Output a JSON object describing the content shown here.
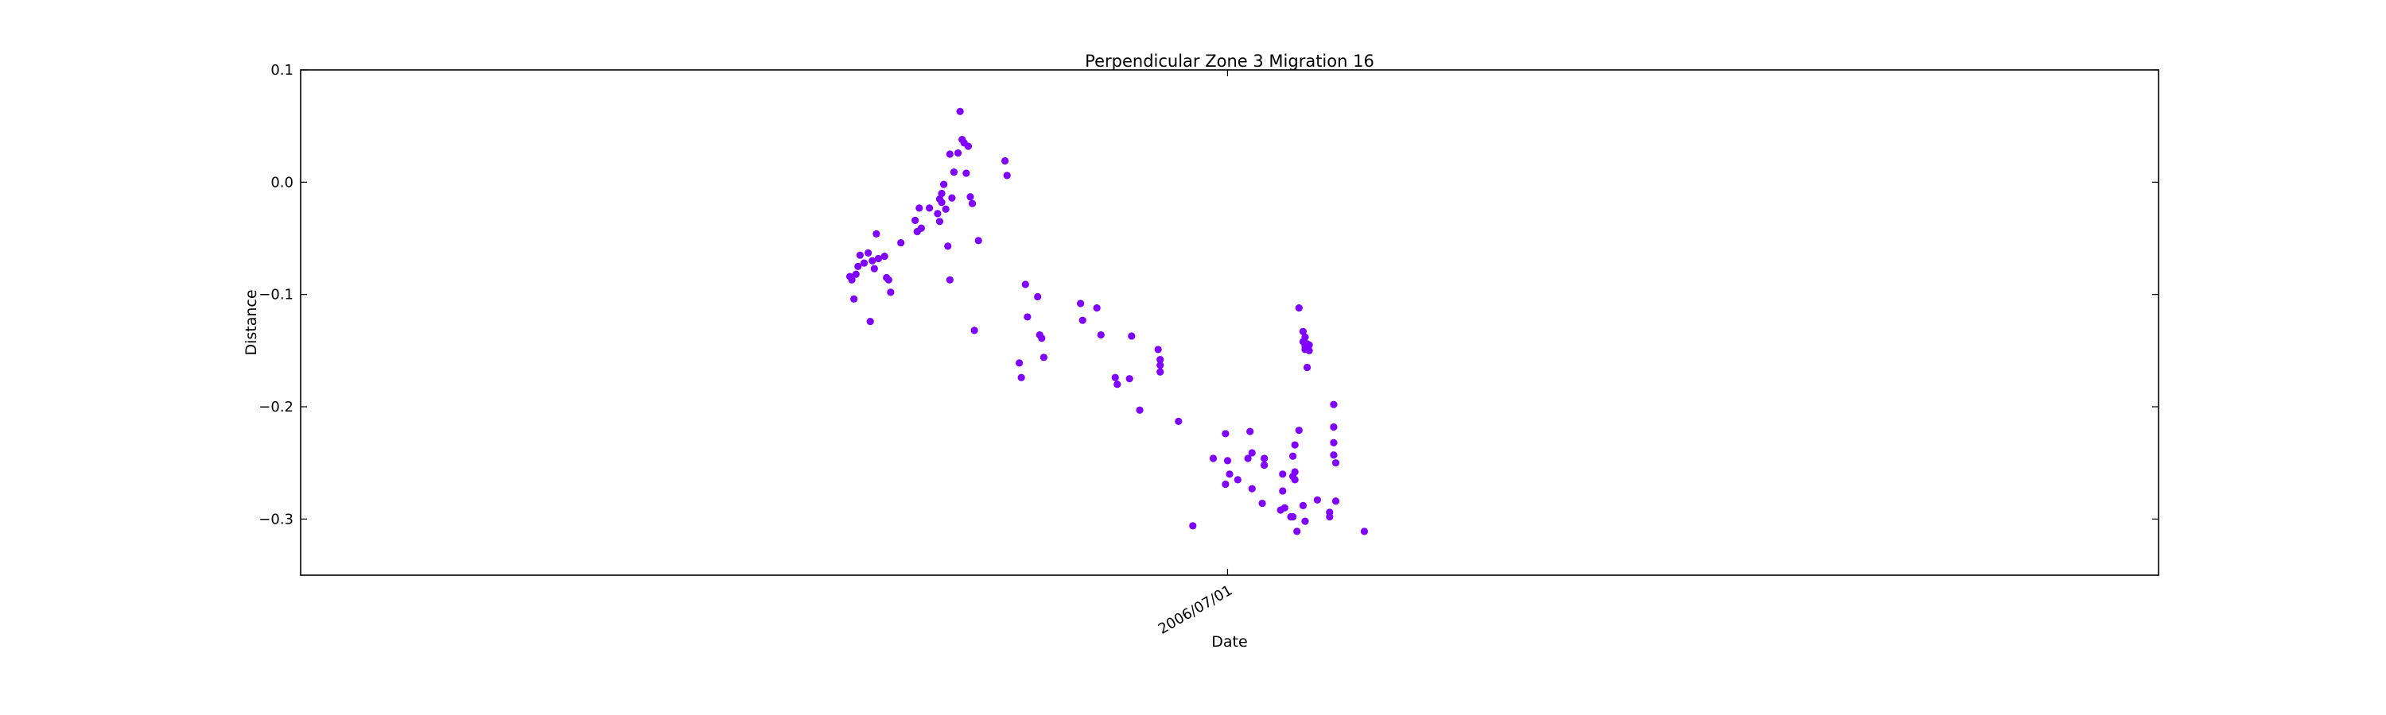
{
  "chart_data": {
    "type": "scatter",
    "title": "Perpendicular Zone 3 Migration 16",
    "xlabel": "Date",
    "ylabel": "Distance",
    "ylim": [
      -0.35,
      0.1
    ],
    "yticks": [
      0.1,
      0.0,
      -0.1,
      -0.2,
      -0.3
    ],
    "ytick_labels": [
      "0.1",
      "0.0",
      "−0.1",
      "−0.2",
      "−0.3"
    ],
    "xlim": [
      "2005-04-03",
      "2007-09-30"
    ],
    "xticks": [
      "2006-07-01"
    ],
    "xtick_labels": [
      "2006/07/01"
    ],
    "grid": false,
    "marker_color": "#7f00ff",
    "points": [
      [
        "2005-12-28",
        -0.084
      ],
      [
        "2005-12-29",
        -0.087
      ],
      [
        "2005-12-30",
        -0.104
      ],
      [
        "2005-12-31",
        -0.082
      ],
      [
        "2006-01-01",
        -0.075
      ],
      [
        "2006-01-02",
        -0.065
      ],
      [
        "2006-01-04",
        -0.072
      ],
      [
        "2006-01-06",
        -0.063
      ],
      [
        "2006-01-07",
        -0.124
      ],
      [
        "2006-01-08",
        -0.07
      ],
      [
        "2006-01-09",
        -0.077
      ],
      [
        "2006-01-10",
        -0.046
      ],
      [
        "2006-01-11",
        -0.068
      ],
      [
        "2006-01-14",
        -0.066
      ],
      [
        "2006-01-15",
        -0.085
      ],
      [
        "2006-01-16",
        -0.087
      ],
      [
        "2006-01-17",
        -0.098
      ],
      [
        "2006-01-22",
        -0.054
      ],
      [
        "2006-01-29",
        -0.034
      ],
      [
        "2006-01-30",
        -0.044
      ],
      [
        "2006-01-31",
        -0.023
      ],
      [
        "2006-02-01",
        -0.041
      ],
      [
        "2006-02-05",
        -0.023
      ],
      [
        "2006-02-09",
        -0.028
      ],
      [
        "2006-02-10",
        -0.035
      ],
      [
        "2006-02-10",
        -0.015
      ],
      [
        "2006-02-11",
        -0.018
      ],
      [
        "2006-02-11",
        -0.01
      ],
      [
        "2006-02-12",
        -0.002
      ],
      [
        "2006-02-13",
        -0.024
      ],
      [
        "2006-02-14",
        -0.057
      ],
      [
        "2006-02-15",
        -0.087
      ],
      [
        "2006-02-15",
        0.025
      ],
      [
        "2006-02-16",
        -0.014
      ],
      [
        "2006-02-17",
        0.009
      ],
      [
        "2006-02-19",
        0.026
      ],
      [
        "2006-02-20",
        0.063
      ],
      [
        "2006-02-21",
        0.038
      ],
      [
        "2006-02-22",
        0.035
      ],
      [
        "2006-02-23",
        0.008
      ],
      [
        "2006-02-24",
        0.032
      ],
      [
        "2006-02-25",
        -0.013
      ],
      [
        "2006-02-26",
        -0.019
      ],
      [
        "2006-02-27",
        -0.132
      ],
      [
        "2006-03-01",
        -0.052
      ],
      [
        "2006-03-14",
        0.019
      ],
      [
        "2006-03-15",
        0.006
      ],
      [
        "2006-03-21",
        -0.161
      ],
      [
        "2006-03-22",
        -0.174
      ],
      [
        "2006-03-24",
        -0.091
      ],
      [
        "2006-03-25",
        -0.12
      ],
      [
        "2006-03-30",
        -0.102
      ],
      [
        "2006-03-31",
        -0.136
      ],
      [
        "2006-04-01",
        -0.139
      ],
      [
        "2006-04-02",
        -0.156
      ],
      [
        "2006-04-20",
        -0.108
      ],
      [
        "2006-04-21",
        -0.123
      ],
      [
        "2006-04-28",
        -0.112
      ],
      [
        "2006-04-30",
        -0.136
      ],
      [
        "2006-05-07",
        -0.174
      ],
      [
        "2006-05-08",
        -0.18
      ],
      [
        "2006-05-14",
        -0.175
      ],
      [
        "2006-05-15",
        -0.137
      ],
      [
        "2006-05-19",
        -0.203
      ],
      [
        "2006-05-28",
        -0.149
      ],
      [
        "2006-05-29",
        -0.158
      ],
      [
        "2006-05-29",
        -0.163
      ],
      [
        "2006-05-29",
        -0.169
      ],
      [
        "2006-06-07",
        -0.213
      ],
      [
        "2006-06-14",
        -0.306
      ],
      [
        "2006-06-24",
        -0.246
      ],
      [
        "2006-06-30",
        -0.224
      ],
      [
        "2006-07-01",
        -0.248
      ],
      [
        "2006-07-02",
        -0.26
      ],
      [
        "2006-06-30",
        -0.269
      ],
      [
        "2006-07-06",
        -0.265
      ],
      [
        "2006-07-11",
        -0.246
      ],
      [
        "2006-07-12",
        -0.222
      ],
      [
        "2006-07-13",
        -0.241
      ],
      [
        "2006-07-13",
        -0.273
      ],
      [
        "2006-07-18",
        -0.286
      ],
      [
        "2006-07-19",
        -0.246
      ],
      [
        "2006-07-19",
        -0.252
      ],
      [
        "2006-07-27",
        -0.292
      ],
      [
        "2006-07-28",
        -0.26
      ],
      [
        "2006-07-28",
        -0.275
      ],
      [
        "2006-07-29",
        -0.29
      ],
      [
        "2006-08-01",
        -0.298
      ],
      [
        "2006-08-02",
        -0.298
      ],
      [
        "2006-08-02",
        -0.262
      ],
      [
        "2006-08-02",
        -0.244
      ],
      [
        "2006-08-03",
        -0.234
      ],
      [
        "2006-08-03",
        -0.258
      ],
      [
        "2006-08-03",
        -0.265
      ],
      [
        "2006-08-04",
        -0.311
      ],
      [
        "2006-08-05",
        -0.221
      ],
      [
        "2006-08-05",
        -0.112
      ],
      [
        "2006-08-07",
        -0.288
      ],
      [
        "2006-08-07",
        -0.142
      ],
      [
        "2006-08-07",
        -0.133
      ],
      [
        "2006-08-08",
        -0.146
      ],
      [
        "2006-08-08",
        -0.149
      ],
      [
        "2006-08-08",
        -0.302
      ],
      [
        "2006-08-08",
        -0.138
      ],
      [
        "2006-08-09",
        -0.165
      ],
      [
        "2006-08-09",
        -0.144
      ],
      [
        "2006-08-10",
        -0.15
      ],
      [
        "2006-08-10",
        -0.145
      ],
      [
        "2006-08-14",
        -0.283
      ],
      [
        "2006-08-20",
        -0.298
      ],
      [
        "2006-08-20",
        -0.294
      ],
      [
        "2006-08-22",
        -0.198
      ],
      [
        "2006-08-22",
        -0.218
      ],
      [
        "2006-08-22",
        -0.232
      ],
      [
        "2006-08-22",
        -0.243
      ],
      [
        "2006-08-23",
        -0.25
      ],
      [
        "2006-08-23",
        -0.284
      ],
      [
        "2006-09-06",
        -0.311
      ]
    ]
  }
}
